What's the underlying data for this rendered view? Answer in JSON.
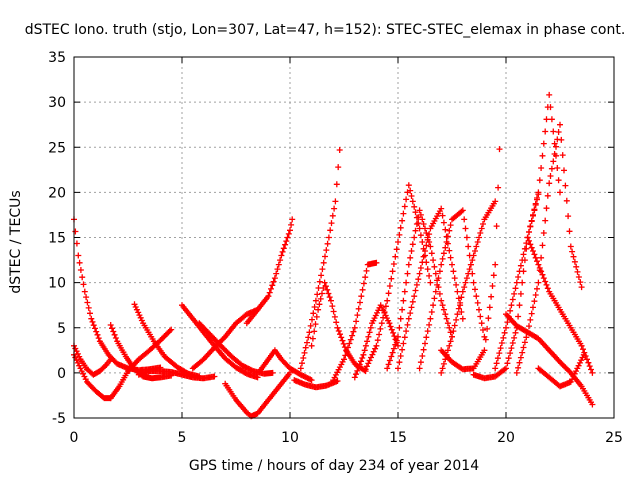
{
  "chart_data": {
    "type": "scatter",
    "title": "dSTEC Iono. truth (stjo, Lon=307, Lat=47, h=152): STEC-STEC_elemax in phase cont.",
    "xlabel": "GPS time / hours of day 234 of year 2014",
    "ylabel": "dSTEC  / TECUs",
    "xlim": [
      0,
      25
    ],
    "ylim": [
      -5,
      35
    ],
    "xticks": [
      0,
      5,
      10,
      15,
      20,
      25
    ],
    "xtick_labels": [
      "0",
      "5",
      "10",
      "15",
      "20",
      "25"
    ],
    "yticks": [
      -5,
      0,
      5,
      10,
      15,
      20,
      25,
      30,
      35
    ],
    "ytick_labels": [
      "-5",
      "0",
      "5",
      "10",
      "15",
      "20",
      "25",
      "30",
      "35"
    ],
    "grid": true,
    "marker": "+",
    "color": "#ff0000",
    "series": [
      {
        "x": [
          0,
          0.2,
          0.5,
          0.8,
          1.2,
          1.6,
          2.0,
          2.5,
          3.0,
          3.5,
          4.0
        ],
        "values": [
          17,
          13,
          9,
          6,
          3.5,
          2,
          1,
          0.5,
          0.3,
          0.4,
          0.6
        ]
      },
      {
        "x": [
          0,
          0.3,
          0.6,
          0.9,
          1.2,
          1.5,
          1.7
        ],
        "values": [
          3,
          1.5,
          0.4,
          -0.2,
          0.2,
          0.9,
          1.5
        ]
      },
      {
        "x": [
          0,
          0.3,
          0.6,
          1.0,
          1.4,
          1.7
        ],
        "values": [
          2,
          0.5,
          -1,
          -2,
          -2.8,
          -2.8
        ]
      },
      {
        "x": [
          1.7,
          2.1,
          2.5,
          3.0,
          3.5,
          4.0,
          4.5
        ],
        "values": [
          -2.8,
          -1.5,
          0.2,
          1.5,
          2.5,
          3.6,
          4.8
        ]
      },
      {
        "x": [
          1.7,
          2.0,
          2.4,
          2.8,
          3.2,
          3.6,
          4.0,
          4.5
        ],
        "values": [
          5.3,
          3.5,
          1.8,
          0.4,
          -0.4,
          -0.6,
          -0.5,
          -0.3
        ]
      },
      {
        "x": [
          2.8,
          3.2,
          3.7,
          4.2,
          4.8,
          5.3,
          5.8
        ],
        "values": [
          7.6,
          5.5,
          3.5,
          1.8,
          0.6,
          -0.1,
          -0.4
        ]
      },
      {
        "x": [
          3.0,
          3.5,
          4.0,
          4.5,
          5.0,
          5.5,
          6.0,
          6.5
        ],
        "values": [
          -0.2,
          0.2,
          0.2,
          0.1,
          -0.2,
          -0.5,
          -0.6,
          -0.4
        ]
      },
      {
        "x": [
          5.0,
          5.5,
          6.0,
          6.5,
          7.0,
          7.5,
          8.0,
          8.5
        ],
        "values": [
          7.5,
          6,
          4.5,
          3,
          1.6,
          0.6,
          -0.1,
          -0.5
        ]
      },
      {
        "x": [
          5.5,
          6.0,
          6.5,
          7.0,
          7.5,
          8.0,
          8.5
        ],
        "values": [
          0.5,
          1.5,
          2.8,
          4,
          5.5,
          6.5,
          7.0
        ]
      },
      {
        "x": [
          5.8,
          6.2,
          6.8,
          7.3,
          7.8,
          8.3,
          8.8,
          9.2
        ],
        "values": [
          5.5,
          4.5,
          3.0,
          1.8,
          0.8,
          0.2,
          -0.1,
          0.0
        ]
      },
      {
        "x": [
          7.0,
          7.5,
          8.0,
          8.2,
          8.5,
          9.0,
          9.5,
          10.0
        ],
        "values": [
          -1.2,
          -3.0,
          -4.4,
          -4.8,
          -4.5,
          -3.0,
          -1.5,
          0.0
        ]
      },
      {
        "x": [
          8.0,
          8.5,
          9.0,
          9.3,
          9.6,
          10.0,
          10.1
        ],
        "values": [
          5.5,
          7.0,
          8.5,
          10.5,
          13,
          15.8,
          17
        ]
      },
      {
        "x": [
          8.6,
          9.0,
          9.3,
          9.6,
          10.0,
          10.5,
          11.0
        ],
        "values": [
          0.2,
          1.5,
          2.5,
          1.5,
          0.5,
          -0.2,
          -0.8
        ]
      },
      {
        "x": [
          10.2,
          10.7,
          11.2,
          11.7,
          12.2
        ],
        "values": [
          -0.8,
          -1.3,
          -1.6,
          -1.4,
          -0.9
        ]
      },
      {
        "x": [
          10.5,
          10.9,
          11.2,
          11.5,
          11.8,
          12.1,
          12.3
        ],
        "values": [
          0.5,
          4.5,
          8.0,
          11.5,
          15.0,
          19.0,
          24.7
        ]
      },
      {
        "x": [
          11.0,
          11.3,
          11.6,
          11.9,
          12.2,
          12.6,
          13.0,
          13.5
        ],
        "values": [
          3.0,
          7.0,
          10.0,
          8.0,
          5.0,
          2.5,
          1.0,
          0.2
        ]
      },
      {
        "x": [
          12.0,
          12.5,
          13.0,
          13.3,
          13.6,
          14.0
        ],
        "values": [
          -0.8,
          1.5,
          5.0,
          8.5,
          12.0,
          12.2
        ]
      },
      {
        "x": [
          13.0,
          13.4,
          13.8,
          14.2,
          14.6,
          15.0
        ],
        "values": [
          -0.5,
          2.0,
          5.5,
          7.5,
          5.5,
          3.0
        ]
      },
      {
        "x": [
          13.5,
          14.0,
          14.5,
          15.0,
          15.5,
          16.0,
          16.5
        ],
        "values": [
          0.4,
          3.0,
          8.0,
          14.5,
          20.8,
          16.0,
          10.0
        ]
      },
      {
        "x": [
          14.5,
          15.0,
          15.5,
          16.0,
          16.5,
          17.0,
          17.5
        ],
        "values": [
          0.5,
          4.0,
          12.0,
          18.0,
          14.0,
          8.0,
          4.0
        ]
      },
      {
        "x": [
          15.0,
          15.5,
          16.0,
          16.5,
          17.0,
          17.5,
          18.0
        ],
        "values": [
          0.5,
          6.0,
          11.0,
          16.0,
          18.2,
          12.0,
          6.0
        ]
      },
      {
        "x": [
          16.0,
          16.5,
          17.0,
          17.5,
          18.0,
          18.5,
          19.0
        ],
        "values": [
          0.5,
          6.0,
          12.0,
          17.0,
          18.0,
          10.0,
          4.0
        ]
      },
      {
        "x": [
          17.0,
          17.5,
          18.0,
          18.5,
          19.0,
          19.5
        ],
        "values": [
          0.0,
          4.0,
          9.0,
          13.0,
          17.0,
          19.0
        ]
      },
      {
        "x": [
          17.0,
          17.5,
          18.0,
          18.5,
          19.0,
          19.5,
          19.7
        ],
        "values": [
          2.5,
          1.2,
          0.4,
          0.5,
          2.5,
          12.0,
          24.8
        ]
      },
      {
        "x": [
          18.5,
          19.0,
          19.5,
          20.0,
          20.5,
          21.0,
          21.5
        ],
        "values": [
          -0.2,
          -0.6,
          -0.4,
          0.5,
          5.0,
          15.0,
          19.8
        ]
      },
      {
        "x": [
          19.5,
          20.0,
          20.5,
          21.0,
          21.5,
          22.0,
          22.5
        ],
        "values": [
          0.5,
          5.0,
          10.0,
          15.0,
          20.0,
          30.8,
          20.0
        ]
      },
      {
        "x": [
          20.5,
          21.0,
          21.5,
          22.0,
          22.5,
          23.0,
          23.5
        ],
        "values": [
          0.0,
          4.5,
          10.0,
          21.0,
          27.5,
          14.0,
          9.5
        ]
      },
      {
        "x": [
          21.0,
          21.5,
          22.0,
          22.5,
          23.0,
          23.5,
          24.0
        ],
        "values": [
          15.0,
          12.0,
          9.0,
          7.0,
          5.0,
          3.0,
          0.0
        ]
      },
      {
        "x": [
          20.0,
          20.5,
          21.0,
          21.5,
          22.0,
          22.5,
          23.0,
          23.5,
          24.0
        ],
        "values": [
          6.5,
          5.2,
          4.5,
          3.8,
          2.5,
          1.2,
          0.0,
          -1.5,
          -3.5
        ]
      },
      {
        "x": [
          21.5,
          22.0,
          22.5,
          23.0,
          23.3,
          23.6
        ],
        "values": [
          0.5,
          -0.5,
          -1.5,
          -1.0,
          0.5,
          2.0
        ]
      }
    ]
  }
}
